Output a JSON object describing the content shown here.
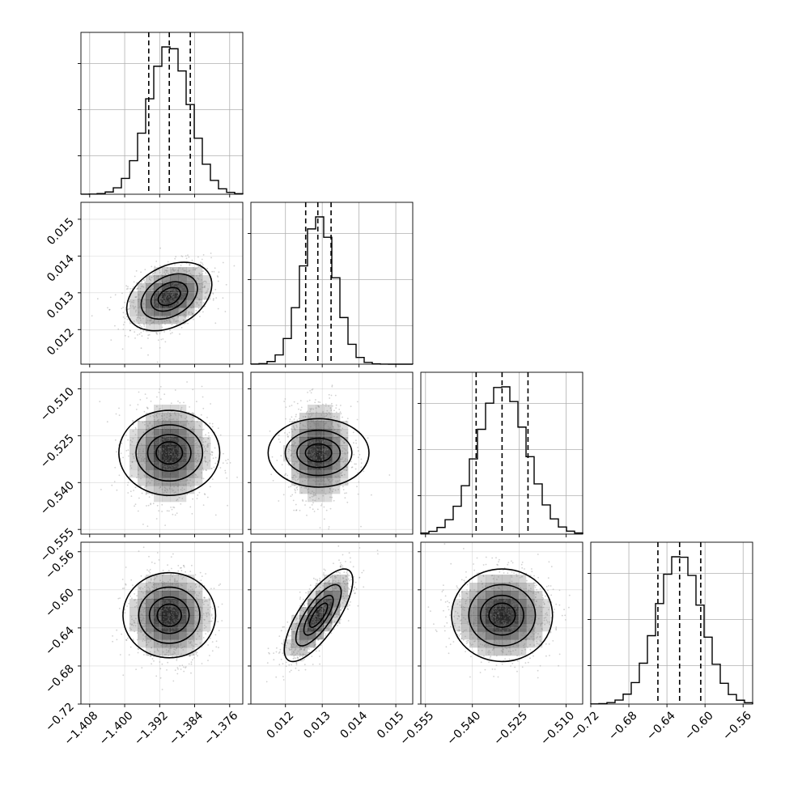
{
  "chart_data": {
    "type": "corner",
    "params": [
      {
        "range": [
          -1.41,
          -1.373
        ],
        "ticks": [
          -1.408,
          -1.4,
          -1.392,
          -1.384,
          -1.376
        ],
        "tick_labels": [
          "−1.408",
          "−1.400",
          "−1.392",
          "−1.384",
          "−1.376"
        ],
        "mean": -1.3898,
        "sd": 0.0047,
        "quantiles": [
          -1.3945,
          -1.3898,
          -1.385
        ]
      },
      {
        "range": [
          0.01106,
          0.01546
        ],
        "ticks": [
          0.012,
          0.013,
          0.014,
          0.015
        ],
        "tick_labels": [
          "0.012",
          "0.013",
          "0.014",
          "0.015"
        ],
        "mean": 0.0129,
        "sd": 0.00045,
        "quantiles": [
          0.01255,
          0.01288,
          0.01324
        ]
      },
      {
        "range": [
          -0.5565,
          -0.5047
        ],
        "ticks": [
          -0.555,
          -0.54,
          -0.525,
          -0.51
        ],
        "tick_labels": [
          "−0.555",
          "−0.540",
          "−0.525",
          "−0.510"
        ],
        "mean": -0.5305,
        "sd": 0.0078,
        "quantiles": [
          -0.5388,
          -0.5305,
          -0.5222
        ]
      },
      {
        "range": [
          -0.72,
          -0.55
        ],
        "ticks": [
          -0.72,
          -0.68,
          -0.64,
          -0.6,
          -0.56
        ],
        "tick_labels": [
          "−0.72",
          "−0.68",
          "−0.64",
          "−0.60",
          "−0.56"
        ],
        "mean": -0.6267,
        "sd": 0.0235,
        "quantiles": [
          -0.6495,
          -0.6267,
          -0.6045
        ]
      }
    ],
    "hist_bins": 20,
    "quantile_levels": [
      0.16,
      0.5,
      0.84
    ],
    "contour_levels": [
      0.5,
      1.0,
      1.5,
      2.0
    ],
    "correlations": {
      "1-0": 0.35,
      "2-0": 0.0,
      "2-1": 0.0,
      "3-0": 0.0,
      "3-1": 0.75,
      "3-2": 0.0
    },
    "grid": true,
    "colors": {
      "line": "#000000",
      "scatter": "#7a7a7a",
      "grid": "#b0b0b0",
      "density": "#000000"
    }
  }
}
